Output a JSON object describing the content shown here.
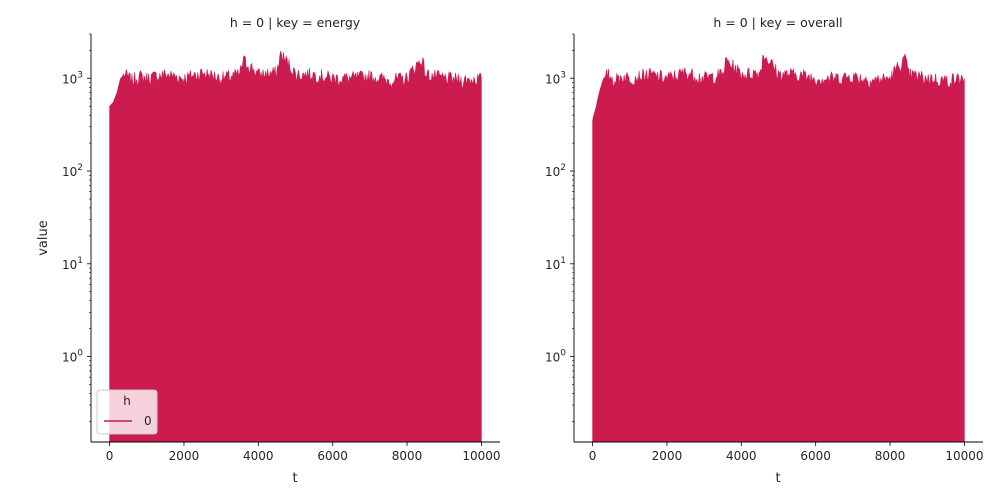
{
  "chart_data": [
    {
      "type": "area",
      "title": "h = 0 | key = energy",
      "xlabel": "t",
      "ylabel": "value",
      "xlim": [
        -500,
        10500
      ],
      "yscale": "log",
      "ylim": [
        0.12,
        3000
      ],
      "xticks": [
        0,
        2000,
        4000,
        6000,
        8000,
        10000
      ],
      "xtick_labels": [
        "0",
        "2000",
        "4000",
        "6000",
        "8000",
        "10000"
      ],
      "yticks": [
        1,
        10,
        100,
        1000
      ],
      "ytick_base": "10",
      "ytick_exponents": [
        "0",
        "1",
        "2",
        "3"
      ],
      "grid": false,
      "legend": {
        "title": "h",
        "entries": [
          "0"
        ],
        "placement": "lower-left"
      },
      "series": [
        {
          "name": "0",
          "color": "#cb1b4f",
          "x": [
            0,
            100,
            200,
            300,
            400,
            600,
            800,
            1000,
            1500,
            2000,
            2500,
            3000,
            3500,
            3600,
            4000,
            4500,
            4600,
            5000,
            5500,
            6000,
            6500,
            7000,
            7500,
            8000,
            8400,
            8500,
            9000,
            9500,
            10000
          ],
          "y": [
            500,
            550,
            700,
            1000,
            1100,
            950,
            1050,
            1000,
            1100,
            1000,
            1150,
            1000,
            1100,
            1550,
            1100,
            1150,
            1800,
            1100,
            1100,
            1000,
            1000,
            1050,
            950,
            1000,
            1600,
            1100,
            1000,
            950,
            1000
          ]
        }
      ]
    },
    {
      "type": "area",
      "title": "h = 0 | key = overall",
      "xlabel": "t",
      "ylabel": "",
      "xlim": [
        -500,
        10500
      ],
      "yscale": "log",
      "ylim": [
        0.12,
        3000
      ],
      "xticks": [
        0,
        2000,
        4000,
        6000,
        8000,
        10000
      ],
      "xtick_labels": [
        "0",
        "2000",
        "4000",
        "6000",
        "8000",
        "10000"
      ],
      "yticks": [
        1,
        10,
        100,
        1000
      ],
      "ytick_base": "10",
      "ytick_exponents": [
        "0",
        "1",
        "2",
        "3"
      ],
      "grid": false,
      "series": [
        {
          "name": "0",
          "color": "#cb1b4f",
          "x": [
            0,
            100,
            200,
            300,
            400,
            600,
            800,
            1000,
            1500,
            2000,
            2500,
            3000,
            3500,
            3600,
            4000,
            4500,
            4600,
            5000,
            5500,
            6000,
            6500,
            7000,
            7500,
            8000,
            8400,
            8500,
            9000,
            9500,
            10000
          ],
          "y": [
            350,
            500,
            750,
            1000,
            1100,
            950,
            1050,
            1000,
            1100,
            1000,
            1150,
            1000,
            1100,
            1550,
            1100,
            1150,
            1800,
            1100,
            1100,
            1000,
            1000,
            1050,
            950,
            1000,
            1600,
            1100,
            1000,
            950,
            1000
          ]
        }
      ]
    }
  ]
}
